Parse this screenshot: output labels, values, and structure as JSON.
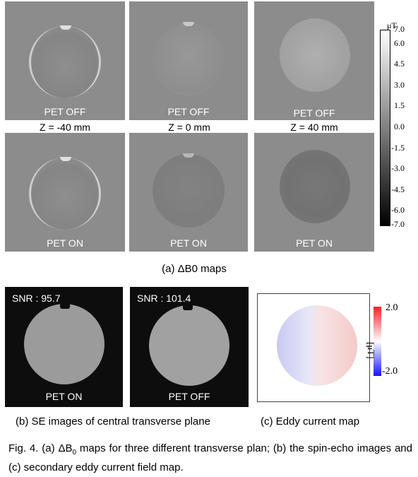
{
  "b0": {
    "rows": [
      {
        "label": "PET OFF",
        "panels": [
          {
            "z": "Z = -40 mm"
          },
          {
            "z": "Z = 0 mm"
          },
          {
            "z": "Z = 40 mm"
          }
        ]
      },
      {
        "label": "PET ON"
      }
    ],
    "caption": "(a) ΔB0 maps",
    "colorbar": {
      "unit": "μT",
      "ticks": [
        "7.0",
        "6.0",
        "4.5",
        "3.0",
        "1.5",
        "0.0",
        "-1.5",
        "-3.0",
        "-4.5",
        "-6.0",
        "-7.0"
      ],
      "range": [
        -7.0,
        7.0
      ]
    }
  },
  "se": {
    "panels": [
      {
        "snr": "SNR : 95.7",
        "label": "PET ON"
      },
      {
        "snr": "SNR : 101.4",
        "label": "PET OFF"
      }
    ],
    "caption": "(b) SE images of central transverse plane"
  },
  "eddy": {
    "ticks": [
      "2.0",
      "-2.0"
    ],
    "unit": "[μT]",
    "range": [
      -2.0,
      2.0
    ],
    "caption": "(c) Eddy current map"
  },
  "figure_caption_parts": {
    "p1": "Fig. 4. (a) ΔB",
    "sub": "0",
    "p2": " maps for three different transverse plan; (b) the spin-echo  images and (c) secondary eddy current field map."
  },
  "colors": {
    "panel_bg": "#8c8c8c",
    "se_bg": "#0d0d0d",
    "eddy_pos": "#ef4444",
    "eddy_neg": "#3b3bdf"
  }
}
